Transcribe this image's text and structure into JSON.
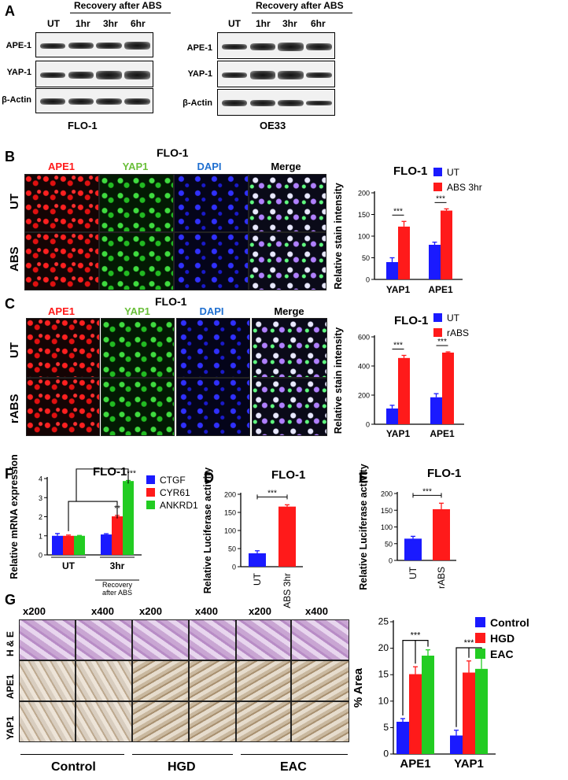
{
  "colors": {
    "blue": "#1a1aff",
    "red": "#ff1a1a",
    "green": "#22cc22"
  },
  "panelA": {
    "label": "A",
    "header": "Recovery after ABS",
    "lanes": [
      "UT",
      "1hr",
      "3hr",
      "6hr"
    ],
    "rows": [
      "APE-1",
      "YAP-1",
      "β-Actin"
    ],
    "cell_left": "FLO-1",
    "cell_right": "OE33"
  },
  "panelB": {
    "label": "B",
    "cell": "FLO-1",
    "stains": [
      "APE1",
      "YAP1",
      "DAPI",
      "Merge"
    ],
    "rows": [
      "UT",
      "ABS"
    ]
  },
  "panelC": {
    "label": "C",
    "cell": "FLO-1",
    "stains": [
      "APE1",
      "YAP1",
      "DAPI",
      "Merge"
    ],
    "rows": [
      "UT",
      "rABS"
    ]
  },
  "panelF": {
    "label": "F"
  },
  "panelD": {
    "label": "D"
  },
  "panelE": {
    "label": "E"
  },
  "panelG": {
    "label": "G",
    "mags": [
      "x200",
      "x400",
      "x200",
      "x400",
      "x200",
      "x400"
    ],
    "rows": [
      "H & E",
      "APE1",
      "YAP1"
    ],
    "groups": [
      "Control",
      "HGD",
      "EAC"
    ]
  },
  "chart_data": [
    {
      "id": "B",
      "type": "bar",
      "title": "FLO-1",
      "ylabel": "Relative stain intensity",
      "ylim": [
        0,
        200
      ],
      "yticks": [
        "0",
        "50",
        "100",
        "150",
        "200"
      ],
      "categories": [
        "YAP1",
        "APE1"
      ],
      "series": [
        {
          "name": "UT",
          "color": "#1a1aff",
          "values": [
            40,
            80
          ],
          "errors": [
            10,
            6
          ]
        },
        {
          "name": "ABS 3hr",
          "color": "#ff1a1a",
          "values": [
            122,
            159
          ],
          "errors": [
            12,
            4
          ]
        }
      ],
      "annotations": [
        "***",
        "***"
      ]
    },
    {
      "id": "C",
      "type": "bar",
      "title": "FLO-1",
      "ylabel": "Relative stain intensity",
      "ylim": [
        0,
        600
      ],
      "yticks": [
        "0",
        "200",
        "400",
        "600"
      ],
      "categories": [
        "YAP1",
        "APE1"
      ],
      "series": [
        {
          "name": "UT",
          "color": "#1a1aff",
          "values": [
            108,
            185
          ],
          "errors": [
            22,
            25
          ]
        },
        {
          "name": "rABS",
          "color": "#ff1a1a",
          "values": [
            455,
            492
          ],
          "errors": [
            18,
            5
          ]
        }
      ],
      "annotations": [
        "***",
        "***"
      ]
    },
    {
      "id": "F",
      "type": "bar",
      "title": "FLO-1",
      "ylabel": "Relative mRNA expression",
      "ylim": [
        0,
        4
      ],
      "yticks": [
        "0",
        "1",
        "2",
        "3",
        "4"
      ],
      "categories": [
        "UT",
        "3hr"
      ],
      "xsublabel": "Recovery after ABS",
      "series": [
        {
          "name": "CTGF",
          "color": "#1a1aff",
          "values": [
            1.0,
            1.07
          ],
          "errors": [
            0.12,
            0.04
          ]
        },
        {
          "name": "CYR61",
          "color": "#ff1a1a",
          "values": [
            1.0,
            2.02
          ],
          "errors": [
            0.04,
            0.05
          ]
        },
        {
          "name": "ANKRD1",
          "color": "#22cc22",
          "values": [
            1.0,
            3.87
          ],
          "errors": [
            0.02,
            0.03
          ]
        }
      ],
      "annotations": [
        "**",
        "***"
      ]
    },
    {
      "id": "D",
      "type": "bar",
      "title": "FLO-1",
      "ylabel": "Relative Luciferase activity",
      "ylim": [
        0,
        200
      ],
      "yticks": [
        "0",
        "50",
        "100",
        "150",
        "200"
      ],
      "categories": [
        "UT",
        "ABS 3hr"
      ],
      "series": [
        {
          "name": "",
          "values": [
            37,
            166
          ],
          "errors": [
            7,
            5
          ],
          "colors": [
            "#1a1aff",
            "#ff1a1a"
          ]
        }
      ],
      "annotations": [
        "***"
      ]
    },
    {
      "id": "E",
      "type": "bar",
      "title": "FLO-1",
      "ylabel": "Relative Luciferase activity",
      "ylim": [
        0,
        200
      ],
      "yticks": [
        "0",
        "50",
        "100",
        "150",
        "200"
      ],
      "categories": [
        "UT",
        "rABS"
      ],
      "series": [
        {
          "name": "",
          "values": [
            65,
            153
          ],
          "errors": [
            7,
            18
          ],
          "colors": [
            "#1a1aff",
            "#ff1a1a"
          ]
        }
      ],
      "annotations": [
        "***"
      ]
    },
    {
      "id": "G",
      "type": "bar",
      "title": "",
      "ylabel": "% Area",
      "ylim": [
        0,
        25
      ],
      "yticks": [
        "0",
        "5",
        "10",
        "15",
        "20",
        "25"
      ],
      "categories": [
        "APE1",
        "YAP1"
      ],
      "series": [
        {
          "name": "Control",
          "color": "#1a1aff",
          "values": [
            6.1,
            3.5
          ],
          "errors": [
            0.6,
            1.0
          ]
        },
        {
          "name": "HGD",
          "color": "#ff1a1a",
          "values": [
            15.1,
            15.4
          ],
          "errors": [
            1.4,
            2.2
          ]
        },
        {
          "name": "EAC",
          "color": "#22cc22",
          "values": [
            18.6,
            16.1
          ],
          "errors": [
            1.1,
            2.2
          ]
        }
      ],
      "annotations": [
        "***",
        "***"
      ]
    }
  ]
}
